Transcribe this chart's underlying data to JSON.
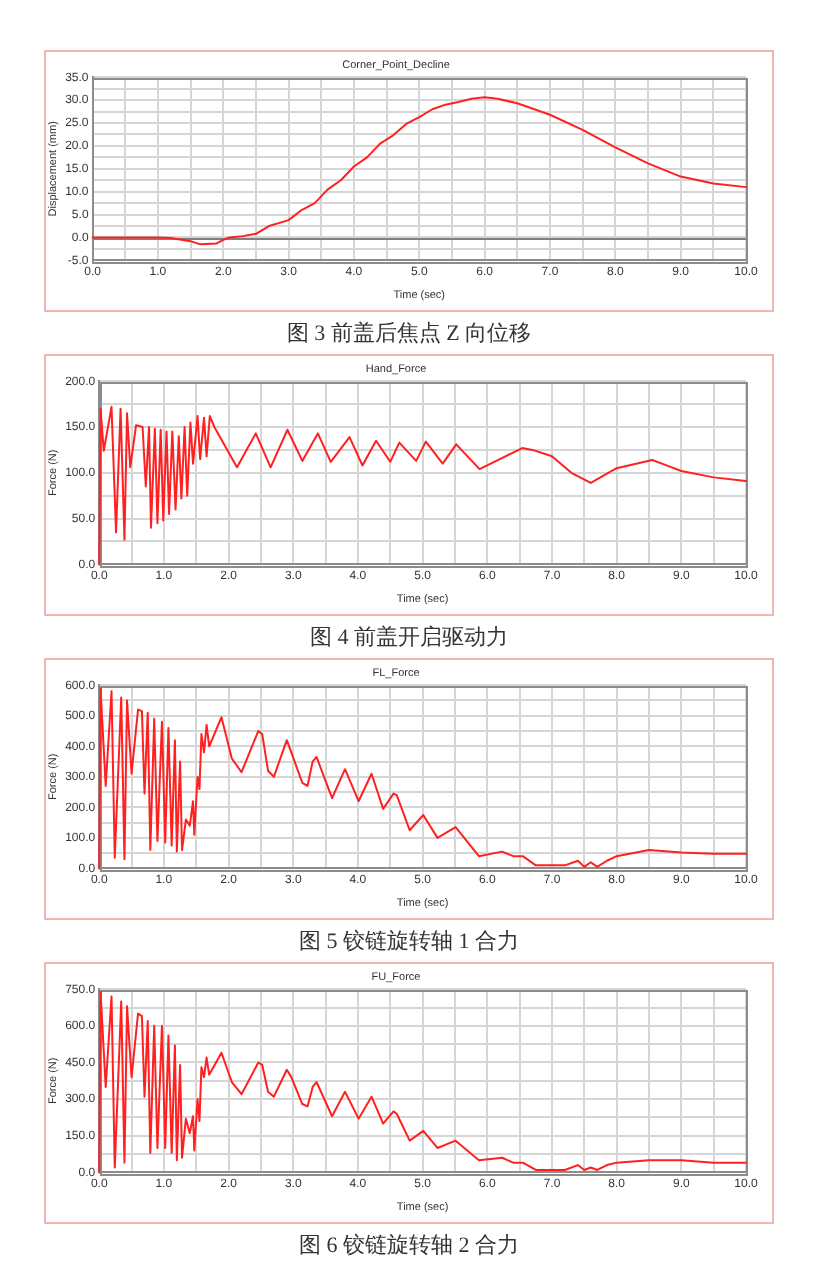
{
  "chart_data": [
    {
      "type": "line",
      "title": "Corner_Point_Decline",
      "xlabel": "Time (sec)",
      "ylabel": "Displacement (mm)",
      "annotations": [
        "图 3 前盖后焦点 Z 向位移"
      ],
      "grid": true,
      "xlim": [
        0,
        10
      ],
      "xticks": [
        {
          "value": 0,
          "label": "0.0"
        },
        {
          "value": 0.5,
          "label": null
        },
        {
          "value": 1,
          "label": "1.0"
        },
        {
          "value": 1.5,
          "label": null
        },
        {
          "value": 2,
          "label": "2.0"
        },
        {
          "value": 2.5,
          "label": null
        },
        {
          "value": 3,
          "label": "3.0"
        },
        {
          "value": 3.5,
          "label": null
        },
        {
          "value": 4,
          "label": "4.0"
        },
        {
          "value": 4.5,
          "label": null
        },
        {
          "value": 5,
          "label": "5.0"
        },
        {
          "value": 5.5,
          "label": null
        },
        {
          "value": 6,
          "label": "6.0"
        },
        {
          "value": 6.5,
          "label": null
        },
        {
          "value": 7,
          "label": "7.0"
        },
        {
          "value": 7.5,
          "label": null
        },
        {
          "value": 8,
          "label": "8.0"
        },
        {
          "value": 8.5,
          "label": null
        },
        {
          "value": 9,
          "label": "9.0"
        },
        {
          "value": 9.5,
          "label": null
        },
        {
          "value": 10,
          "label": "10.0"
        }
      ],
      "ylim": [
        -5,
        35
      ],
      "yticks": [
        {
          "value": -5,
          "label": "-5.0"
        },
        {
          "value": -2.5,
          "label": null
        },
        {
          "value": 0,
          "label": "0.0"
        },
        {
          "value": 2.5,
          "label": null
        },
        {
          "value": 5,
          "label": "5.0"
        },
        {
          "value": 7.5,
          "label": null
        },
        {
          "value": 10,
          "label": "10.0"
        },
        {
          "value": 12.5,
          "label": null
        },
        {
          "value": 15,
          "label": "15.0"
        },
        {
          "value": 17.5,
          "label": null
        },
        {
          "value": 20,
          "label": "20.0"
        },
        {
          "value": 22.5,
          "label": null
        },
        {
          "value": 25,
          "label": "25.0"
        },
        {
          "value": 27.5,
          "label": null
        },
        {
          "value": 30,
          "label": "30.0"
        },
        {
          "value": 32.5,
          "label": null
        },
        {
          "value": 35,
          "label": "35.0"
        }
      ],
      "ref_lines": [
        {
          "axis": "y",
          "value": 0,
          "color": "#808080"
        }
      ],
      "x": [
        0,
        0.5,
        1.0,
        1.2,
        1.5,
        1.65,
        1.9,
        2.0,
        2.1,
        2.3,
        2.5,
        2.7,
        3.0,
        3.2,
        3.4,
        3.6,
        3.8,
        4.0,
        4.2,
        4.4,
        4.6,
        4.8,
        5.0,
        5.2,
        5.4,
        5.6,
        5.8,
        6.0,
        6.2,
        6.5,
        7.0,
        7.5,
        8.0,
        8.5,
        9.0,
        9.5,
        10.0
      ],
      "series": [
        {
          "color": "#ff2020",
          "values": [
            0,
            0,
            0,
            -0.1,
            -0.8,
            -1.5,
            -1.3,
            -0.5,
            0,
            0.3,
            0.8,
            2.5,
            3.8,
            6,
            7.5,
            10.5,
            12.5,
            15.5,
            17.5,
            20.5,
            22.3,
            24.8,
            26.3,
            28,
            29,
            29.6,
            30.3,
            30.6,
            30.3,
            29.3,
            26.8,
            23.5,
            19.7,
            16.2,
            13.3,
            11.8,
            11
          ]
        }
      ]
    },
    {
      "type": "line",
      "title": "Hand_Force",
      "xlabel": "Time (sec)",
      "ylabel": "Force (N)",
      "annotations": [
        "图 4 前盖开启驱动力"
      ],
      "grid": true,
      "xlim": [
        0,
        10
      ],
      "xticks": [
        {
          "value": 0,
          "label": "0.0"
        },
        {
          "value": 0.5,
          "label": null
        },
        {
          "value": 1,
          "label": "1.0"
        },
        {
          "value": 1.5,
          "label": null
        },
        {
          "value": 2,
          "label": "2.0"
        },
        {
          "value": 2.5,
          "label": null
        },
        {
          "value": 3,
          "label": "3.0"
        },
        {
          "value": 3.5,
          "label": null
        },
        {
          "value": 4,
          "label": "4.0"
        },
        {
          "value": 4.5,
          "label": null
        },
        {
          "value": 5,
          "label": "5.0"
        },
        {
          "value": 5.5,
          "label": null
        },
        {
          "value": 6,
          "label": "6.0"
        },
        {
          "value": 6.5,
          "label": null
        },
        {
          "value": 7,
          "label": "7.0"
        },
        {
          "value": 7.5,
          "label": null
        },
        {
          "value": 8,
          "label": "8.0"
        },
        {
          "value": 8.5,
          "label": null
        },
        {
          "value": 9,
          "label": "9.0"
        },
        {
          "value": 9.5,
          "label": null
        },
        {
          "value": 10,
          "label": "10.0"
        }
      ],
      "ylim": [
        0,
        200
      ],
      "yticks": [
        {
          "value": 0,
          "label": "0.0"
        },
        {
          "value": 25,
          "label": null
        },
        {
          "value": 50,
          "label": "50.0"
        },
        {
          "value": 75,
          "label": null
        },
        {
          "value": 100,
          "label": "100.0"
        },
        {
          "value": 125,
          "label": null
        },
        {
          "value": 150,
          "label": "150.0"
        },
        {
          "value": 175,
          "label": null
        },
        {
          "value": 200,
          "label": "200.0"
        }
      ],
      "x": [
        0,
        0.02,
        0.07,
        0.19,
        0.26,
        0.33,
        0.39,
        0.43,
        0.48,
        0.57,
        0.67,
        0.72,
        0.77,
        0.8,
        0.86,
        0.9,
        0.95,
        0.99,
        1.04,
        1.08,
        1.13,
        1.18,
        1.23,
        1.27,
        1.32,
        1.36,
        1.41,
        1.45,
        1.52,
        1.56,
        1.62,
        1.66,
        1.71,
        1.78,
        2.13,
        2.42,
        2.65,
        2.91,
        3.14,
        3.38,
        3.58,
        3.87,
        4.07,
        4.28,
        4.5,
        4.64,
        4.9,
        5.05,
        5.31,
        5.52,
        5.88,
        6.54,
        6.7,
        7.0,
        7.3,
        7.6,
        8.0,
        8.55,
        8.7,
        9.0,
        9.5,
        10.0
      ],
      "series": [
        {
          "color": "#ff2020",
          "values": [
            0,
            170,
            124,
            172,
            35,
            170,
            27,
            165,
            106,
            152,
            150,
            85,
            150,
            40,
            148,
            45,
            147,
            48,
            145,
            55,
            145,
            60,
            140,
            72,
            150,
            75,
            155,
            110,
            162,
            115,
            160,
            118,
            162,
            150,
            106,
            143,
            106,
            147,
            113,
            143,
            112,
            139,
            108,
            135,
            112,
            133,
            113,
            134,
            110,
            131,
            104,
            127,
            125,
            118,
            100,
            89,
            105,
            114,
            110,
            102,
            95,
            91
          ]
        }
      ]
    },
    {
      "type": "line",
      "title": "FL_Force",
      "xlabel": "Time (sec)",
      "ylabel": "Force (N)",
      "annotations": [
        "图 5 铰链旋转轴 1 合力"
      ],
      "grid": true,
      "xlim": [
        0,
        10
      ],
      "xticks": [
        {
          "value": 0,
          "label": "0.0"
        },
        {
          "value": 0.5,
          "label": null
        },
        {
          "value": 1,
          "label": "1.0"
        },
        {
          "value": 1.5,
          "label": null
        },
        {
          "value": 2,
          "label": "2.0"
        },
        {
          "value": 2.5,
          "label": null
        },
        {
          "value": 3,
          "label": "3.0"
        },
        {
          "value": 3.5,
          "label": null
        },
        {
          "value": 4,
          "label": "4.0"
        },
        {
          "value": 4.5,
          "label": null
        },
        {
          "value": 5,
          "label": "5.0"
        },
        {
          "value": 5.5,
          "label": null
        },
        {
          "value": 6,
          "label": "6.0"
        },
        {
          "value": 6.5,
          "label": null
        },
        {
          "value": 7,
          "label": "7.0"
        },
        {
          "value": 7.5,
          "label": null
        },
        {
          "value": 8,
          "label": "8.0"
        },
        {
          "value": 8.5,
          "label": null
        },
        {
          "value": 9,
          "label": "9.0"
        },
        {
          "value": 9.5,
          "label": null
        },
        {
          "value": 10,
          "label": "10.0"
        }
      ],
      "ylim": [
        0,
        600
      ],
      "yticks": [
        {
          "value": 0,
          "label": "0.0"
        },
        {
          "value": 50,
          "label": null
        },
        {
          "value": 100,
          "label": "100.0"
        },
        {
          "value": 150,
          "label": null
        },
        {
          "value": 200,
          "label": "200.0"
        },
        {
          "value": 250,
          "label": null
        },
        {
          "value": 300,
          "label": "300.0"
        },
        {
          "value": 350,
          "label": null
        },
        {
          "value": 400,
          "label": "400.0"
        },
        {
          "value": 450,
          "label": null
        },
        {
          "value": 500,
          "label": "500.0"
        },
        {
          "value": 550,
          "label": null
        },
        {
          "value": 600,
          "label": "600.0"
        }
      ],
      "x": [
        0,
        0.02,
        0.1,
        0.19,
        0.24,
        0.34,
        0.39,
        0.43,
        0.5,
        0.6,
        0.66,
        0.7,
        0.75,
        0.79,
        0.85,
        0.9,
        0.97,
        1.02,
        1.07,
        1.12,
        1.17,
        1.2,
        1.25,
        1.28,
        1.34,
        1.4,
        1.45,
        1.47,
        1.52,
        1.55,
        1.58,
        1.62,
        1.66,
        1.7,
        1.89,
        2.05,
        2.2,
        2.46,
        2.52,
        2.61,
        2.7,
        2.9,
        2.97,
        3.14,
        3.22,
        3.3,
        3.36,
        3.6,
        3.8,
        4.01,
        4.21,
        4.39,
        4.55,
        4.6,
        4.8,
        5.01,
        5.23,
        5.51,
        5.87,
        6.23,
        6.4,
        6.55,
        6.75,
        7.2,
        7.4,
        7.5,
        7.6,
        7.7,
        7.85,
        8.0,
        8.5,
        9.0,
        9.5,
        10.0
      ],
      "series": [
        {
          "color": "#ff2020",
          "values": [
            0,
            590,
            270,
            580,
            35,
            560,
            30,
            550,
            310,
            520,
            515,
            245,
            510,
            60,
            490,
            90,
            480,
            85,
            460,
            75,
            420,
            55,
            350,
            60,
            160,
            140,
            220,
            110,
            300,
            260,
            440,
            380,
            470,
            400,
            495,
            360,
            315,
            450,
            440,
            320,
            300,
            420,
            380,
            280,
            270,
            350,
            365,
            230,
            325,
            220,
            310,
            195,
            245,
            240,
            125,
            175,
            100,
            135,
            40,
            55,
            40,
            40,
            10,
            10,
            25,
            5,
            20,
            5,
            25,
            40,
            60,
            52,
            48,
            48
          ]
        }
      ]
    },
    {
      "type": "line",
      "title": "FU_Force",
      "xlabel": "Time (sec)",
      "ylabel": "Force (N)",
      "annotations": [
        "图 6 铰链旋转轴 2 合力"
      ],
      "grid": true,
      "xlim": [
        0,
        10
      ],
      "xticks": [
        {
          "value": 0,
          "label": "0.0"
        },
        {
          "value": 0.5,
          "label": null
        },
        {
          "value": 1,
          "label": "1.0"
        },
        {
          "value": 1.5,
          "label": null
        },
        {
          "value": 2,
          "label": "2.0"
        },
        {
          "value": 2.5,
          "label": null
        },
        {
          "value": 3,
          "label": "3.0"
        },
        {
          "value": 3.5,
          "label": null
        },
        {
          "value": 4,
          "label": "4.0"
        },
        {
          "value": 4.5,
          "label": null
        },
        {
          "value": 5,
          "label": "5.0"
        },
        {
          "value": 5.5,
          "label": null
        },
        {
          "value": 6,
          "label": "6.0"
        },
        {
          "value": 6.5,
          "label": null
        },
        {
          "value": 7,
          "label": "7.0"
        },
        {
          "value": 7.5,
          "label": null
        },
        {
          "value": 8,
          "label": "8.0"
        },
        {
          "value": 8.5,
          "label": null
        },
        {
          "value": 9,
          "label": "9.0"
        },
        {
          "value": 9.5,
          "label": null
        },
        {
          "value": 10,
          "label": "10.0"
        }
      ],
      "ylim": [
        0,
        750
      ],
      "yticks": [
        {
          "value": 0,
          "label": "0.0"
        },
        {
          "value": 75,
          "label": null
        },
        {
          "value": 150,
          "label": "150.0"
        },
        {
          "value": 225,
          "label": null
        },
        {
          "value": 300,
          "label": "300.0"
        },
        {
          "value": 375,
          "label": null
        },
        {
          "value": 450,
          "label": "450.0"
        },
        {
          "value": 525,
          "label": null
        },
        {
          "value": 600,
          "label": "600.0"
        },
        {
          "value": 675,
          "label": null
        },
        {
          "value": 750,
          "label": "750.0"
        }
      ],
      "x": [
        0,
        0.02,
        0.1,
        0.19,
        0.24,
        0.34,
        0.39,
        0.43,
        0.5,
        0.6,
        0.66,
        0.7,
        0.75,
        0.79,
        0.85,
        0.9,
        0.97,
        1.02,
        1.07,
        1.12,
        1.17,
        1.2,
        1.25,
        1.28,
        1.34,
        1.4,
        1.45,
        1.47,
        1.52,
        1.55,
        1.58,
        1.62,
        1.66,
        1.7,
        1.89,
        2.05,
        2.2,
        2.46,
        2.52,
        2.61,
        2.7,
        2.9,
        2.97,
        3.14,
        3.22,
        3.3,
        3.36,
        3.6,
        3.8,
        4.01,
        4.21,
        4.39,
        4.55,
        4.6,
        4.8,
        5.01,
        5.23,
        5.51,
        5.87,
        6.23,
        6.4,
        6.55,
        6.75,
        7.2,
        7.4,
        7.5,
        7.6,
        7.7,
        7.85,
        8.0,
        8.5,
        9.0,
        9.5,
        10.0
      ],
      "series": [
        {
          "color": "#ff2020",
          "values": [
            0,
            740,
            350,
            720,
            20,
            700,
            40,
            680,
            390,
            650,
            640,
            310,
            620,
            80,
            600,
            100,
            600,
            100,
            560,
            80,
            520,
            50,
            440,
            60,
            220,
            160,
            230,
            90,
            300,
            210,
            430,
            390,
            470,
            400,
            490,
            370,
            320,
            450,
            440,
            330,
            310,
            420,
            390,
            280,
            270,
            350,
            370,
            230,
            330,
            220,
            310,
            200,
            250,
            240,
            130,
            170,
            100,
            130,
            50,
            60,
            40,
            40,
            10,
            10,
            30,
            10,
            20,
            10,
            30,
            40,
            50,
            50,
            40,
            40
          ]
        }
      ]
    }
  ]
}
